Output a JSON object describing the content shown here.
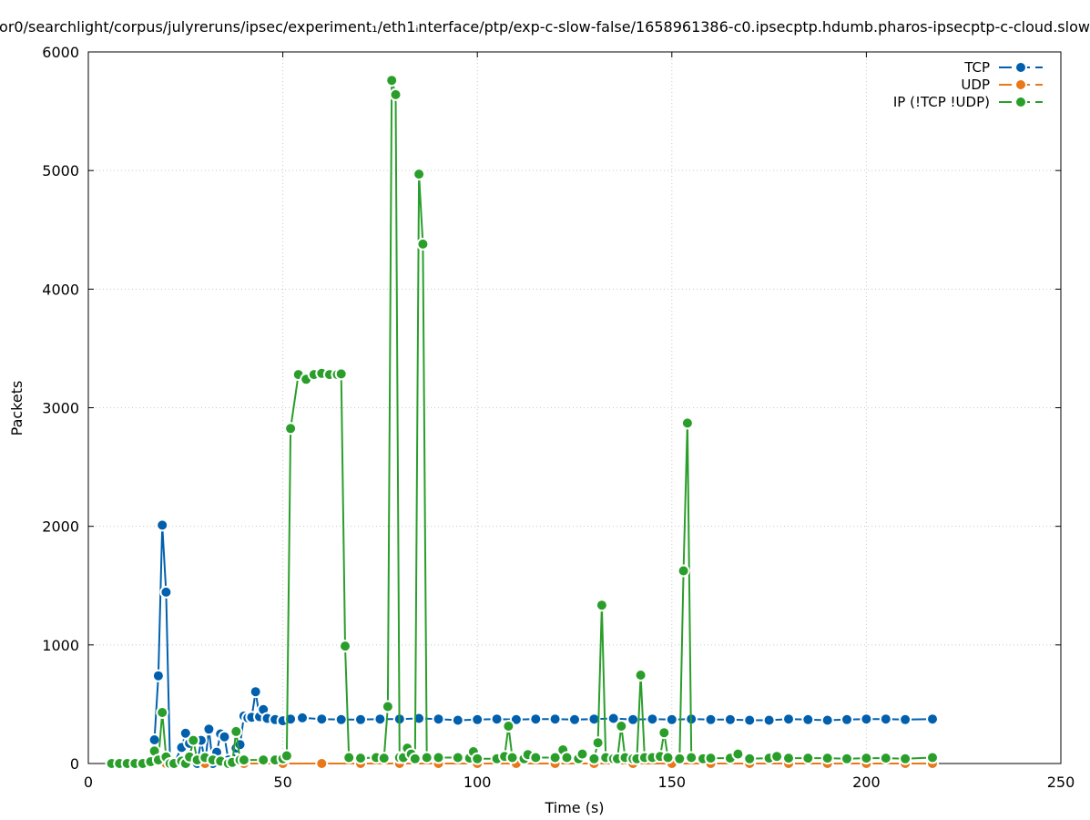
{
  "chart_data": {
    "type": "line",
    "title": "or0/searchlight/corpus/julyreruns/ipsec/experiment₁/eth1ᵢnterface/ptp/exp-c-slow-false/1658961386-c0.ipsecptp.hdumb.pharos-ipsecptp-c-cloud.slow",
    "xlabel": "Time (s)",
    "ylabel": "Packets",
    "xlim": [
      0,
      250
    ],
    "ylim": [
      0,
      6000
    ],
    "xticks": [
      0,
      50,
      100,
      150,
      200,
      250
    ],
    "yticks": [
      0,
      1000,
      2000,
      3000,
      4000,
      5000,
      6000
    ],
    "grid": true,
    "legend_position": "top-right",
    "series": [
      {
        "name": "TCP",
        "color": "#0060ad",
        "points": [
          [
            6,
            0
          ],
          [
            8,
            0
          ],
          [
            10,
            0
          ],
          [
            12,
            0
          ],
          [
            14,
            0
          ],
          [
            16,
            0
          ],
          [
            17,
            200
          ],
          [
            18,
            740
          ],
          [
            19,
            2010
          ],
          [
            20,
            1445
          ],
          [
            21,
            20
          ],
          [
            22,
            0
          ],
          [
            24,
            135
          ],
          [
            25,
            255
          ],
          [
            26,
            170
          ],
          [
            27,
            20
          ],
          [
            28,
            0
          ],
          [
            29,
            195
          ],
          [
            30,
            0
          ],
          [
            31,
            290
          ],
          [
            32,
            0
          ],
          [
            33,
            95
          ],
          [
            34,
            250
          ],
          [
            35,
            225
          ],
          [
            36,
            30
          ],
          [
            37,
            0
          ],
          [
            38,
            130
          ],
          [
            39,
            160
          ],
          [
            40,
            400
          ],
          [
            41,
            385
          ],
          [
            42,
            390
          ],
          [
            43,
            605
          ],
          [
            44,
            395
          ],
          [
            45,
            455
          ],
          [
            46,
            380
          ],
          [
            48,
            370
          ],
          [
            50,
            360
          ],
          [
            52,
            375
          ],
          [
            55,
            385
          ],
          [
            60,
            375
          ],
          [
            65,
            370
          ],
          [
            70,
            370
          ],
          [
            75,
            375
          ],
          [
            80,
            375
          ],
          [
            85,
            380
          ],
          [
            90,
            375
          ],
          [
            95,
            365
          ],
          [
            100,
            370
          ],
          [
            105,
            375
          ],
          [
            110,
            370
          ],
          [
            115,
            375
          ],
          [
            120,
            375
          ],
          [
            125,
            370
          ],
          [
            130,
            375
          ],
          [
            135,
            380
          ],
          [
            140,
            370
          ],
          [
            145,
            375
          ],
          [
            150,
            370
          ],
          [
            155,
            375
          ],
          [
            160,
            370
          ],
          [
            165,
            370
          ],
          [
            170,
            365
          ],
          [
            175,
            365
          ],
          [
            180,
            375
          ],
          [
            185,
            370
          ],
          [
            190,
            365
          ],
          [
            195,
            370
          ],
          [
            200,
            375
          ],
          [
            205,
            375
          ],
          [
            210,
            370
          ],
          [
            217,
            375
          ]
        ]
      },
      {
        "name": "UDP",
        "color": "#e8781a",
        "points": [
          [
            6,
            0
          ],
          [
            10,
            0
          ],
          [
            20,
            0
          ],
          [
            30,
            0
          ],
          [
            40,
            0
          ],
          [
            50,
            0
          ],
          [
            60,
            0
          ],
          [
            70,
            0
          ],
          [
            80,
            0
          ],
          [
            90,
            0
          ],
          [
            100,
            0
          ],
          [
            110,
            0
          ],
          [
            120,
            0
          ],
          [
            130,
            0
          ],
          [
            140,
            0
          ],
          [
            150,
            0
          ],
          [
            160,
            0
          ],
          [
            170,
            0
          ],
          [
            180,
            0
          ],
          [
            190,
            0
          ],
          [
            200,
            0
          ],
          [
            210,
            0
          ],
          [
            217,
            0
          ]
        ]
      },
      {
        "name": "IP (!TCP  !UDP)",
        "color": "#2a9e2a",
        "points": [
          [
            6,
            0
          ],
          [
            8,
            0
          ],
          [
            10,
            0
          ],
          [
            12,
            0
          ],
          [
            14,
            0
          ],
          [
            16,
            15
          ],
          [
            17,
            105
          ],
          [
            18,
            30
          ],
          [
            19,
            430
          ],
          [
            20,
            55
          ],
          [
            21,
            0
          ],
          [
            22,
            0
          ],
          [
            24,
            20
          ],
          [
            25,
            0
          ],
          [
            26,
            55
          ],
          [
            27,
            195
          ],
          [
            28,
            30
          ],
          [
            30,
            50
          ],
          [
            32,
            30
          ],
          [
            34,
            20
          ],
          [
            36,
            0
          ],
          [
            37,
            10
          ],
          [
            38,
            270
          ],
          [
            39,
            30
          ],
          [
            40,
            30
          ],
          [
            45,
            30
          ],
          [
            48,
            30
          ],
          [
            50,
            40
          ],
          [
            51,
            65
          ],
          [
            52,
            2825
          ],
          [
            54,
            3280
          ],
          [
            56,
            3240
          ],
          [
            58,
            3280
          ],
          [
            60,
            3290
          ],
          [
            62,
            3280
          ],
          [
            64,
            3280
          ],
          [
            65,
            3285
          ],
          [
            66,
            990
          ],
          [
            67,
            50
          ],
          [
            70,
            45
          ],
          [
            74,
            50
          ],
          [
            76,
            45
          ],
          [
            77,
            480
          ],
          [
            78,
            5760
          ],
          [
            79,
            5640
          ],
          [
            80,
            50
          ],
          [
            81,
            50
          ],
          [
            82,
            130
          ],
          [
            83,
            80
          ],
          [
            84,
            40
          ],
          [
            85,
            4970
          ],
          [
            86,
            4380
          ],
          [
            87,
            50
          ],
          [
            90,
            50
          ],
          [
            95,
            50
          ],
          [
            98,
            45
          ],
          [
            99,
            100
          ],
          [
            100,
            40
          ],
          [
            105,
            40
          ],
          [
            107,
            60
          ],
          [
            108,
            315
          ],
          [
            109,
            50
          ],
          [
            112,
            40
          ],
          [
            113,
            75
          ],
          [
            115,
            50
          ],
          [
            120,
            50
          ],
          [
            122,
            115
          ],
          [
            123,
            50
          ],
          [
            126,
            40
          ],
          [
            127,
            80
          ],
          [
            130,
            40
          ],
          [
            131,
            175
          ],
          [
            132,
            1335
          ],
          [
            133,
            50
          ],
          [
            135,
            40
          ],
          [
            136,
            40
          ],
          [
            137,
            315
          ],
          [
            138,
            50
          ],
          [
            140,
            40
          ],
          [
            141,
            40
          ],
          [
            142,
            745
          ],
          [
            143,
            50
          ],
          [
            145,
            50
          ],
          [
            147,
            60
          ],
          [
            148,
            260
          ],
          [
            149,
            50
          ],
          [
            152,
            40
          ],
          [
            153,
            1625
          ],
          [
            154,
            2870
          ],
          [
            155,
            50
          ],
          [
            158,
            40
          ],
          [
            160,
            45
          ],
          [
            165,
            45
          ],
          [
            167,
            80
          ],
          [
            170,
            40
          ],
          [
            175,
            45
          ],
          [
            177,
            60
          ],
          [
            180,
            45
          ],
          [
            185,
            45
          ],
          [
            190,
            45
          ],
          [
            195,
            40
          ],
          [
            200,
            45
          ],
          [
            205,
            45
          ],
          [
            210,
            40
          ],
          [
            217,
            50
          ]
        ]
      }
    ]
  }
}
